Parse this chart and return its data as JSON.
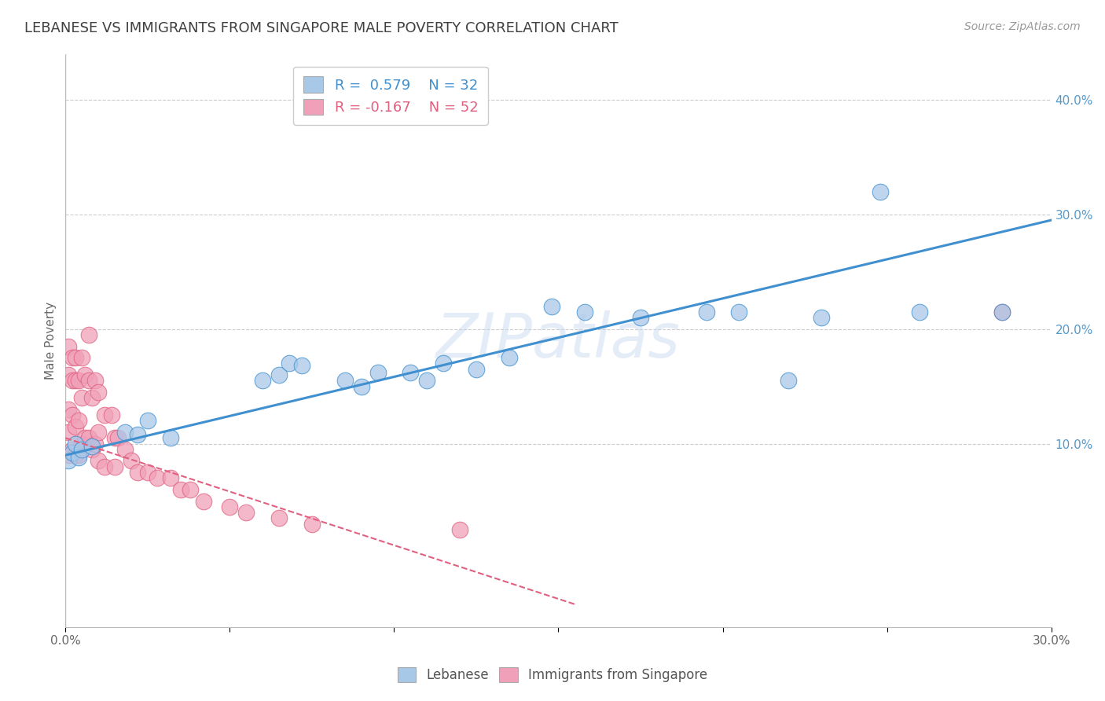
{
  "title": "LEBANESE VS IMMIGRANTS FROM SINGAPORE MALE POVERTY CORRELATION CHART",
  "source": "Source: ZipAtlas.com",
  "ylabel": "Male Poverty",
  "xlim": [
    0.0,
    0.3
  ],
  "ylim": [
    -0.06,
    0.44
  ],
  "xticks": [
    0.0,
    0.05,
    0.1,
    0.15,
    0.2,
    0.25,
    0.3
  ],
  "xticklabels": [
    "0.0%",
    "",
    "",
    "",
    "",
    "",
    "30.0%"
  ],
  "yticks_right": [
    0.1,
    0.2,
    0.3,
    0.4
  ],
  "ytick_labels_right": [
    "10.0%",
    "20.0%",
    "30.0%",
    "40.0%"
  ],
  "grid_color": "#cccccc",
  "background_color": "#ffffff",
  "legend_R_blue": "R =  0.579",
  "legend_N_blue": "N = 32",
  "legend_R_pink": "R = -0.167",
  "legend_N_pink": "N = 52",
  "blue_color": "#a8c8e8",
  "pink_color": "#f0a0b8",
  "blue_line_color": "#4090d0",
  "pink_line_color": "#e06080",
  "title_color": "#404040",
  "source_color": "#999999",
  "blue_line_x0": 0.0,
  "blue_line_y0": 0.09,
  "blue_line_x1": 0.3,
  "blue_line_y1": 0.295,
  "pink_line_x0": 0.0,
  "pink_line_y0": 0.105,
  "pink_line_x1": 0.155,
  "pink_line_y1": -0.04,
  "blue_scatter_x": [
    0.001,
    0.002,
    0.003,
    0.004,
    0.005,
    0.008,
    0.018,
    0.022,
    0.025,
    0.032,
    0.06,
    0.065,
    0.068,
    0.072,
    0.085,
    0.09,
    0.095,
    0.105,
    0.11,
    0.115,
    0.125,
    0.135,
    0.148,
    0.158,
    0.195,
    0.205,
    0.23,
    0.248,
    0.26,
    0.285,
    0.22,
    0.175
  ],
  "blue_scatter_y": [
    0.085,
    0.092,
    0.1,
    0.088,
    0.095,
    0.098,
    0.11,
    0.108,
    0.12,
    0.105,
    0.155,
    0.16,
    0.17,
    0.168,
    0.155,
    0.15,
    0.162,
    0.162,
    0.155,
    0.17,
    0.165,
    0.175,
    0.22,
    0.215,
    0.215,
    0.215,
    0.21,
    0.32,
    0.215,
    0.215,
    0.155,
    0.21
  ],
  "pink_scatter_x": [
    0.001,
    0.001,
    0.001,
    0.001,
    0.001,
    0.002,
    0.002,
    0.002,
    0.002,
    0.003,
    0.003,
    0.003,
    0.003,
    0.004,
    0.004,
    0.004,
    0.005,
    0.005,
    0.005,
    0.006,
    0.006,
    0.007,
    0.007,
    0.007,
    0.008,
    0.008,
    0.009,
    0.009,
    0.01,
    0.01,
    0.01,
    0.012,
    0.012,
    0.014,
    0.015,
    0.015,
    0.016,
    0.018,
    0.02,
    0.022,
    0.025,
    0.028,
    0.032,
    0.035,
    0.038,
    0.042,
    0.05,
    0.055,
    0.065,
    0.075,
    0.12,
    0.285
  ],
  "pink_scatter_y": [
    0.185,
    0.16,
    0.13,
    0.11,
    0.09,
    0.175,
    0.155,
    0.125,
    0.095,
    0.175,
    0.155,
    0.115,
    0.09,
    0.155,
    0.12,
    0.09,
    0.175,
    0.14,
    0.1,
    0.16,
    0.105,
    0.195,
    0.155,
    0.105,
    0.14,
    0.095,
    0.155,
    0.1,
    0.145,
    0.11,
    0.085,
    0.125,
    0.08,
    0.125,
    0.105,
    0.08,
    0.105,
    0.095,
    0.085,
    0.075,
    0.075,
    0.07,
    0.07,
    0.06,
    0.06,
    0.05,
    0.045,
    0.04,
    0.035,
    0.03,
    0.025,
    0.215
  ]
}
